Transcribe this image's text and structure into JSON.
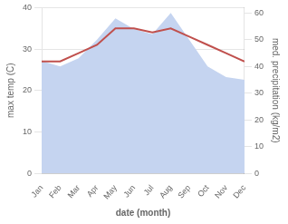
{
  "chart_data": {
    "type": "line",
    "xlabel": "date (month)",
    "ylabel": "max temp (C)",
    "y2label": "med. precipitation (kg/m2)",
    "categories": [
      "Jan",
      "Feb",
      "Mar",
      "Apr",
      "May",
      "Jun",
      "Jul",
      "Aug",
      "Sep",
      "Oct",
      "Nov",
      "Dec"
    ],
    "series": [
      {
        "type": "line",
        "color": "#c0504d",
        "values": [
          27,
          27,
          29,
          31,
          35,
          35,
          34,
          35,
          33,
          31,
          29,
          27
        ]
      },
      {
        "type": "area",
        "color": "#c5d4f0",
        "axis": "y2",
        "values": [
          42,
          40,
          43,
          50,
          58,
          54,
          52,
          60,
          50,
          40,
          36,
          35
        ]
      }
    ],
    "ylim": [
      0,
      40
    ],
    "yticks": [
      0,
      10,
      20,
      30,
      40
    ],
    "y2lim": [
      0,
      62
    ],
    "y2ticks": [
      0,
      10,
      20,
      30,
      40,
      50,
      60
    ],
    "grid": true
  }
}
